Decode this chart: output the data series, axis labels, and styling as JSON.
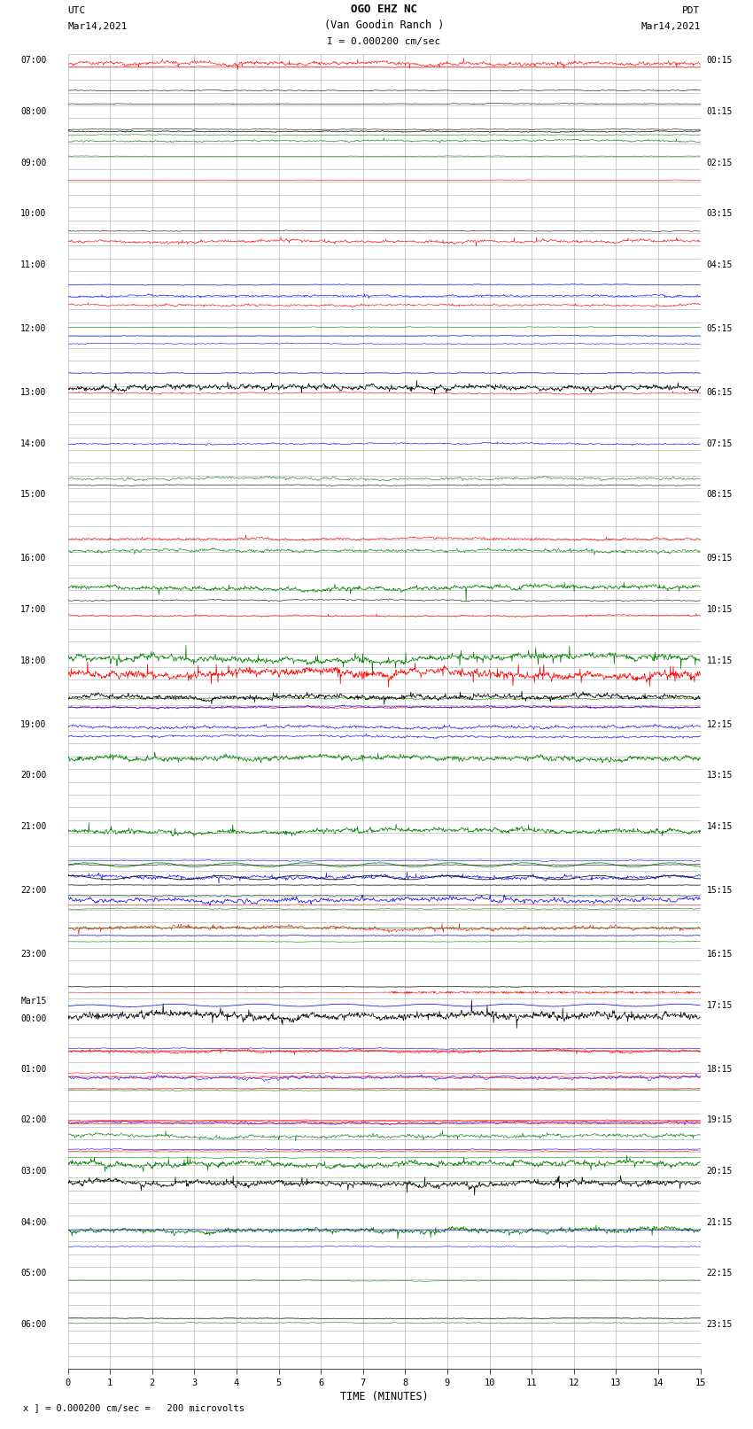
{
  "title_line1": "OGO EHZ NC",
  "title_line2": "(Van Goodin Ranch )",
  "scale_text": "I = 0.000200 cm/sec",
  "left_label_line1": "UTC",
  "left_label_line2": "Mar14,2021",
  "right_label_line1": "PDT",
  "right_label_line2": "Mar14,2021",
  "xlabel": "TIME (MINUTES)",
  "footer_text": "x ] = 0.000200 cm/sec =   200 microvolts",
  "bg_color": "#ffffff",
  "grid_color": "#aaaaaa",
  "trace_colors": [
    "#000000",
    "#ff0000",
    "#0000ff",
    "#008000"
  ],
  "n_minutes": 15,
  "figsize": [
    8.5,
    16.13
  ],
  "dpi": 100,
  "utc_labels": [
    [
      "07:00",
      0
    ],
    [
      "08:00",
      4
    ],
    [
      "09:00",
      8
    ],
    [
      "10:00",
      12
    ],
    [
      "11:00",
      16
    ],
    [
      "12:00",
      21
    ],
    [
      "13:00",
      26
    ],
    [
      "14:00",
      30
    ],
    [
      "15:00",
      34
    ],
    [
      "16:00",
      39
    ],
    [
      "17:00",
      43
    ],
    [
      "18:00",
      47
    ],
    [
      "19:00",
      52
    ],
    [
      "20:00",
      56
    ],
    [
      "21:00",
      60
    ],
    [
      "22:00",
      65
    ],
    [
      "23:00",
      70
    ],
    [
      "Mar15",
      74
    ],
    [
      "00:00",
      75
    ],
    [
      "01:00",
      79
    ],
    [
      "02:00",
      83
    ],
    [
      "03:00",
      87
    ],
    [
      "04:00",
      91
    ],
    [
      "05:00",
      95
    ],
    [
      "06:00",
      99
    ]
  ],
  "pdt_labels": [
    [
      "00:15",
      0
    ],
    [
      "01:15",
      4
    ],
    [
      "02:15",
      8
    ],
    [
      "03:15",
      12
    ],
    [
      "04:15",
      16
    ],
    [
      "05:15",
      21
    ],
    [
      "06:15",
      26
    ],
    [
      "07:15",
      30
    ],
    [
      "08:15",
      34
    ],
    [
      "09:15",
      39
    ],
    [
      "10:15",
      43
    ],
    [
      "11:15",
      47
    ],
    [
      "12:15",
      52
    ],
    [
      "13:15",
      56
    ],
    [
      "14:15",
      60
    ],
    [
      "15:15",
      65
    ],
    [
      "16:15",
      70
    ],
    [
      "17:15",
      74
    ],
    [
      "18:15",
      79
    ],
    [
      "19:15",
      83
    ],
    [
      "20:15",
      87
    ],
    [
      "21:15",
      91
    ],
    [
      "22:15",
      95
    ],
    [
      "23:15",
      99
    ]
  ],
  "n_rows": 103
}
